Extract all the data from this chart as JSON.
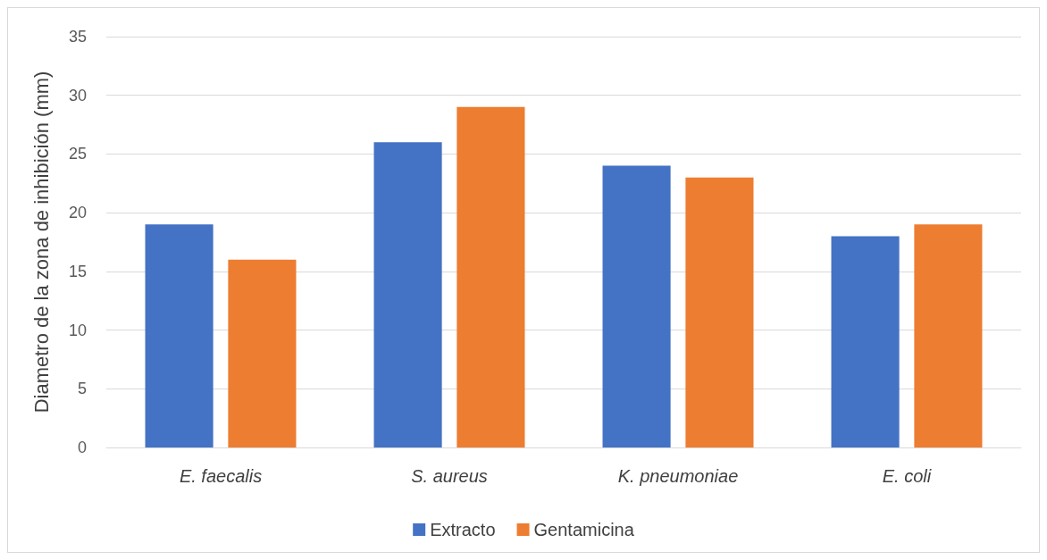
{
  "chart_data": {
    "type": "bar",
    "ylabel": "Diametro de la zona de inhibición (mm)",
    "categories": [
      "E. faecalis",
      "S. aureus",
      "K. pneumoniae",
      "E. coli"
    ],
    "series": [
      {
        "name": "Extracto",
        "color": "#4472c4",
        "values": [
          19,
          26,
          24,
          18
        ]
      },
      {
        "name": "Gentamicina",
        "color": "#ed7d31",
        "values": [
          16,
          29,
          23,
          19
        ]
      }
    ],
    "ylim": [
      0,
      35
    ],
    "yticks": [
      0,
      5,
      10,
      15,
      20,
      25,
      30,
      35
    ],
    "grid": "y",
    "legend": "bottom"
  }
}
